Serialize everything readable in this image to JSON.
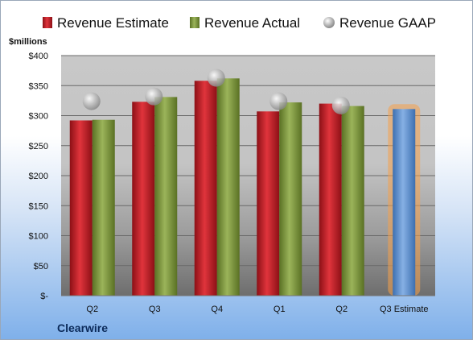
{
  "chart_data": {
    "type": "bar",
    "company": "Clearwire",
    "unit_label": "$millions",
    "categories": [
      "Q2",
      "Q3",
      "Q4",
      "Q1",
      "Q2",
      "Q3 Estimate"
    ],
    "ylim": [
      0,
      400
    ],
    "yticks": [
      0,
      50,
      100,
      150,
      200,
      250,
      300,
      350,
      400
    ],
    "ytick_labels": [
      "$-",
      "$50",
      "$100",
      "$150",
      "$200",
      "$250",
      "$300",
      "$350",
      "$400"
    ],
    "grid": true,
    "legend_position": "top",
    "series": [
      {
        "name": "Revenue Estimate",
        "kind": "bar",
        "color": "#c0202a",
        "values": [
          292,
          323,
          358,
          307,
          320,
          null
        ]
      },
      {
        "name": "Revenue Actual",
        "kind": "bar",
        "color": "#7f9a3c",
        "values": [
          293,
          331,
          362,
          322,
          316,
          null
        ]
      },
      {
        "name": "Revenue GAAP",
        "kind": "marker",
        "color": "#b8b8b8",
        "values": [
          324,
          332,
          363,
          324,
          317,
          null
        ]
      }
    ],
    "estimate_bar": {
      "category_index": 5,
      "value": 311,
      "color": "#5b8fd0",
      "glow": "#f5a04a"
    }
  }
}
